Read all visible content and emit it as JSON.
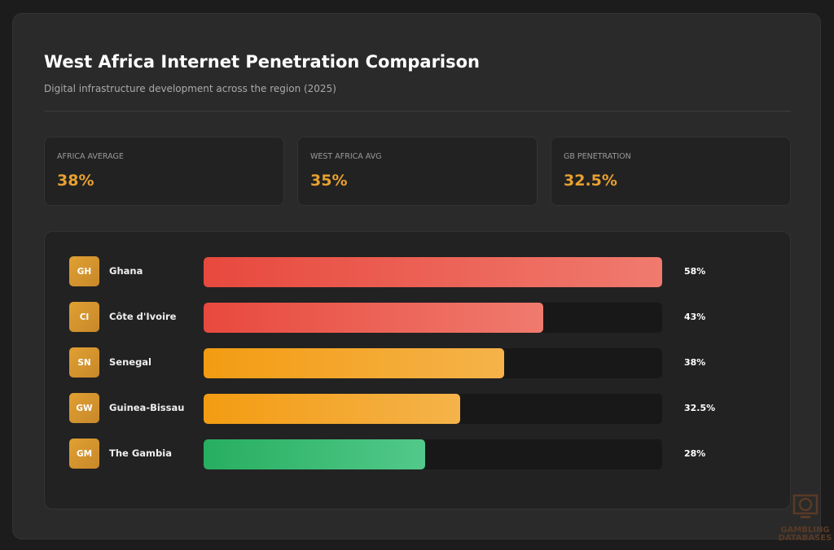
{
  "header": {
    "title": "West Africa Internet Penetration Comparison",
    "subtitle": "Digital infrastructure development across the region (2025)"
  },
  "stats": [
    {
      "label": "Africa Average",
      "value": "38%"
    },
    {
      "label": "West Africa Avg",
      "value": "35%"
    },
    {
      "label": "GB Penetration",
      "value": "32.5%"
    }
  ],
  "chart_data": {
    "type": "bar",
    "orientation": "horizontal",
    "categories": [
      "Ghana",
      "Côte d'Ivoire",
      "Senegal",
      "Guinea-Bissau",
      "The Gambia"
    ],
    "codes": [
      "GH",
      "CI",
      "SN",
      "GW",
      "GM"
    ],
    "values": [
      58,
      43,
      38,
      32.5,
      28
    ],
    "labels": [
      "58%",
      "43%",
      "38%",
      "32.5%",
      "28%"
    ],
    "colors": [
      [
        "#e8493e",
        "#f07a6e"
      ],
      [
        "#e8493e",
        "#f07a6e"
      ],
      [
        "#f39c12",
        "#f5b34a"
      ],
      [
        "#f39c12",
        "#f5b34a"
      ],
      [
        "#27ae60",
        "#52c98a"
      ]
    ],
    "xlim": [
      0,
      58
    ]
  },
  "watermark": {
    "text": "GAMBLING DATABASES"
  }
}
